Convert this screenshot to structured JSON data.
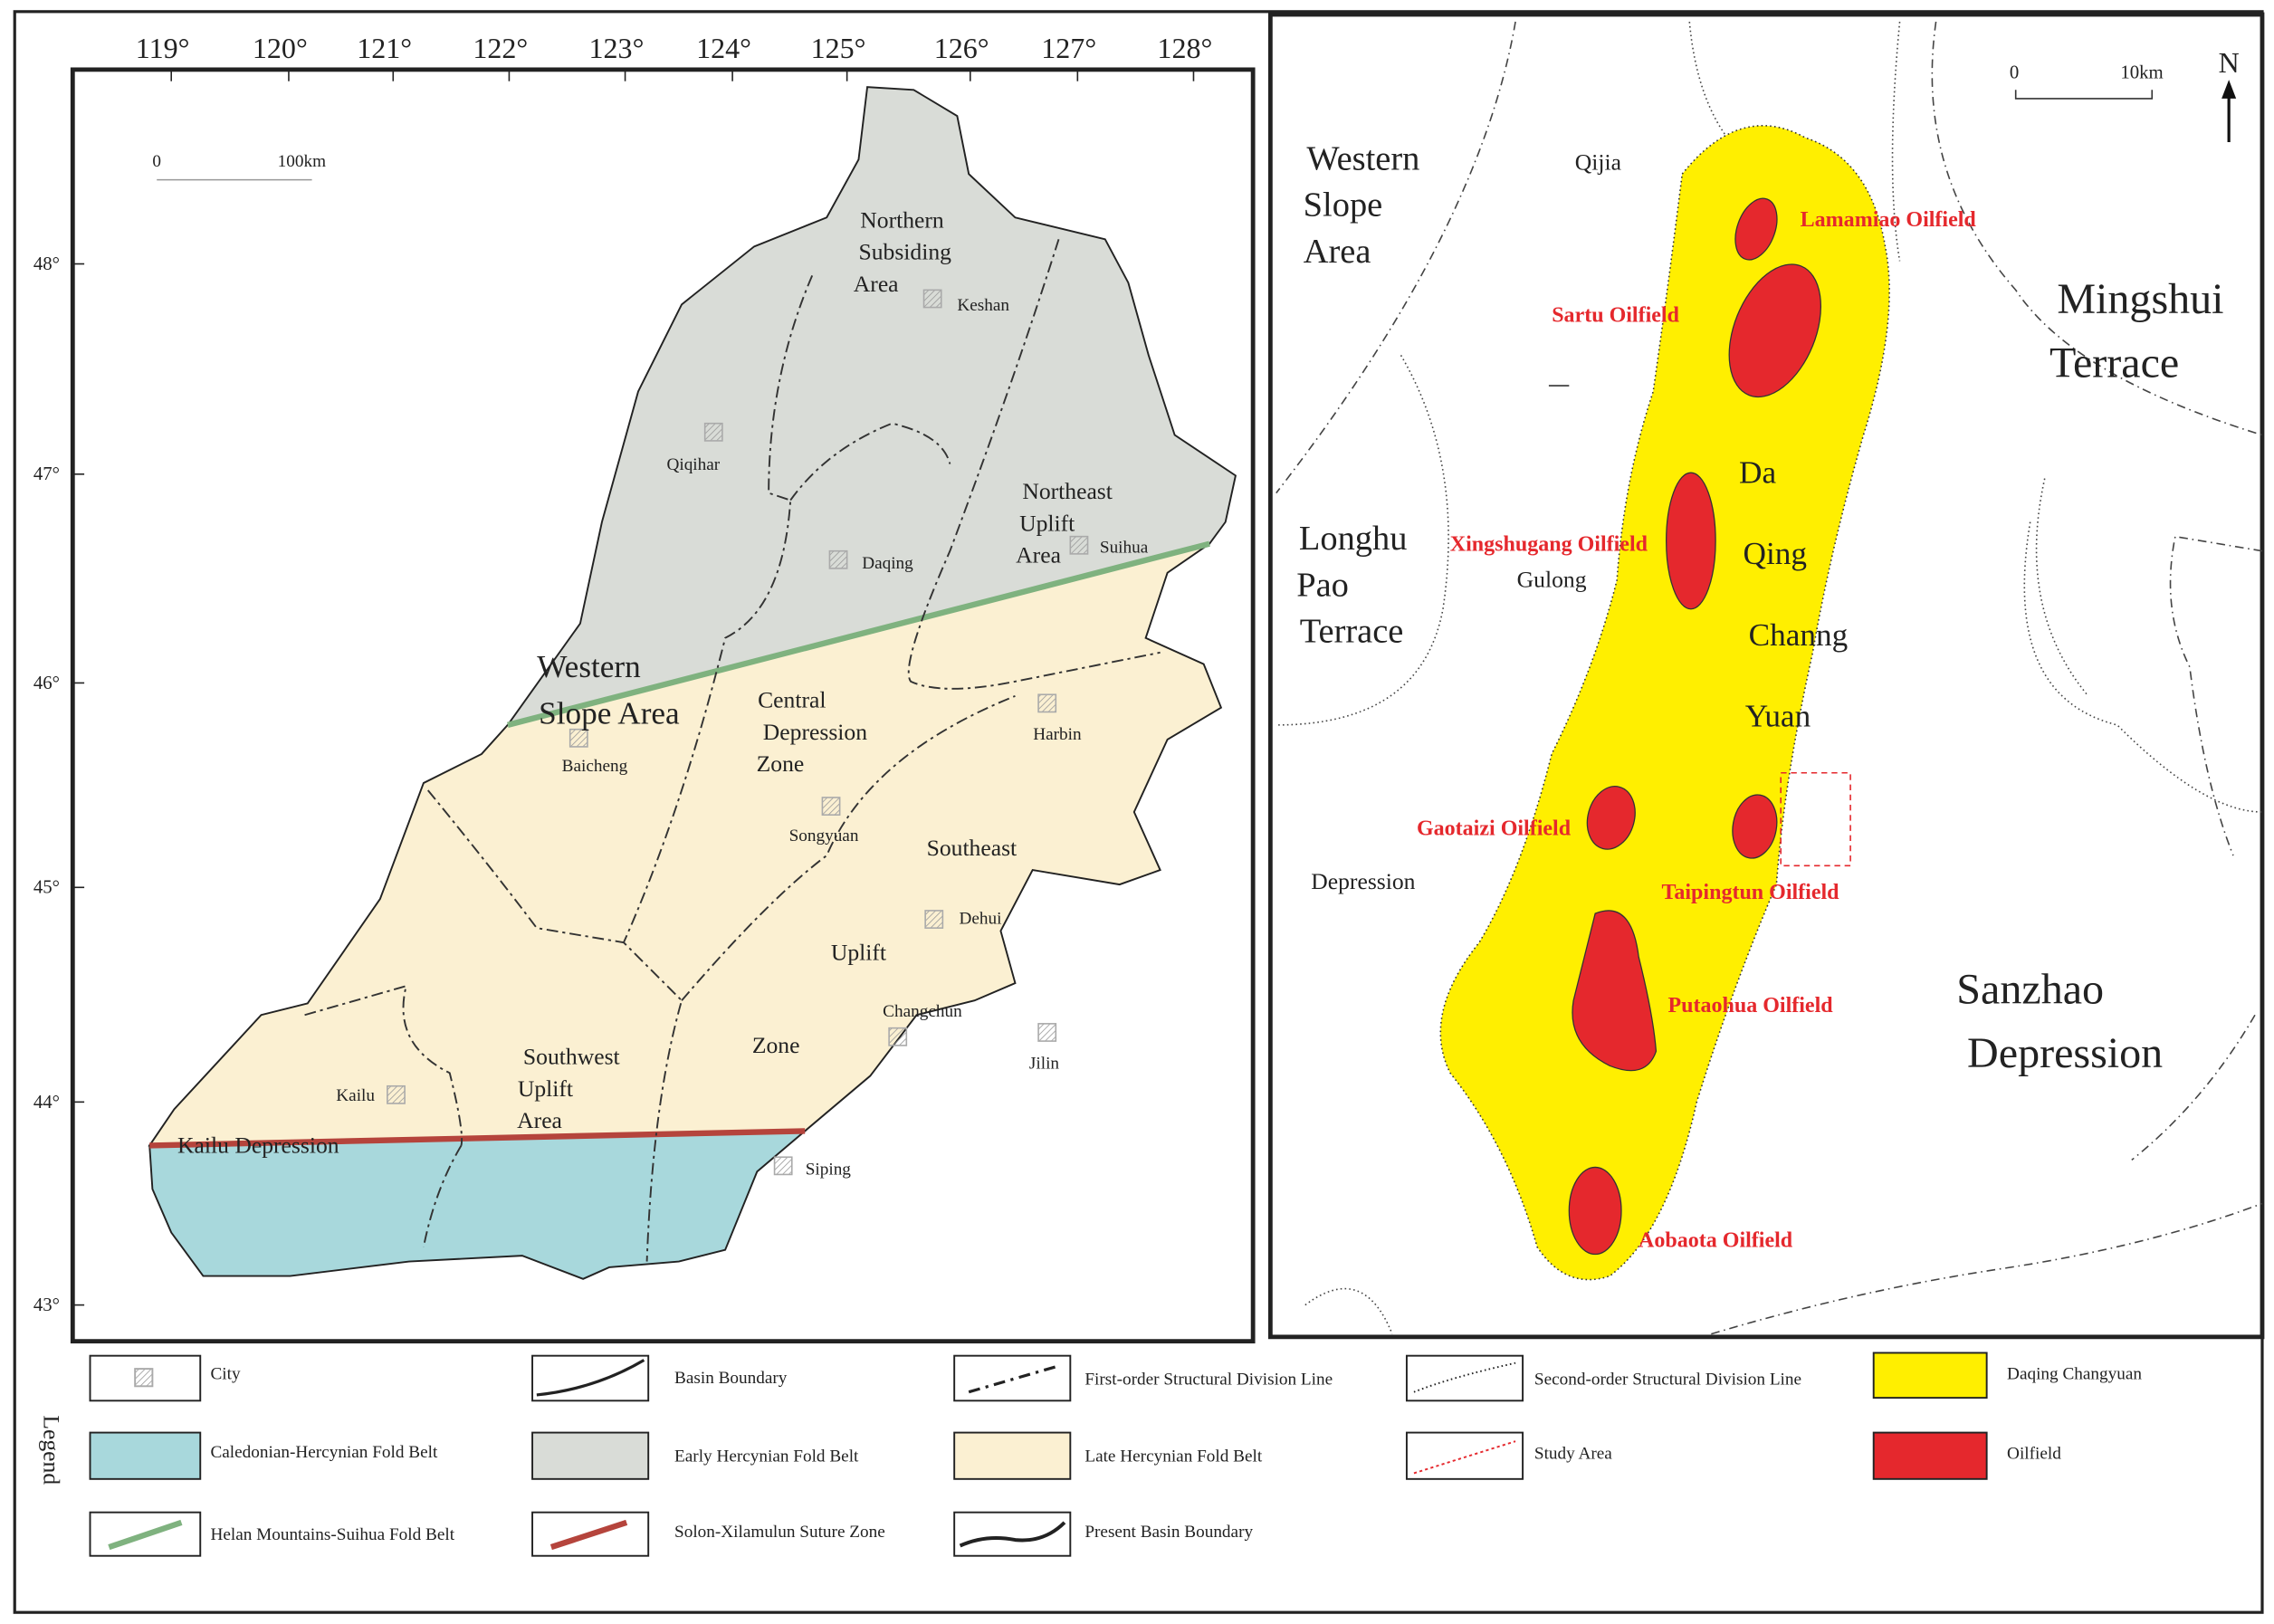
{
  "left_map": {
    "longitudes": [
      "119°",
      "120°",
      "121°",
      "122°",
      "123°",
      "124°",
      "125°",
      "126°",
      "127°",
      "128°"
    ],
    "latitudes": [
      "48°",
      "47°",
      "46°",
      "45°",
      "44°",
      "43°"
    ],
    "scale": [
      "0",
      "100km"
    ],
    "regions": [
      "Northern",
      "Subsiding",
      "Area",
      "Northeast",
      "Uplift",
      "Area",
      "Western",
      "Slope Area",
      "Central",
      "Depression",
      "Zone",
      "Southeast",
      "Uplift",
      "Zone",
      "Southwest",
      "Uplift",
      "Area",
      "Kailu Depression"
    ],
    "cities": [
      "Keshan",
      "Qiqihar",
      "Suihua",
      "Daqing",
      "Baicheng",
      "Harbin",
      "Songyuan",
      "Dehui",
      "Changchun",
      "Jilin",
      "Kailu",
      "Siping"
    ]
  },
  "right_map": {
    "scale": [
      "0",
      "10km"
    ],
    "north": "N",
    "regions": [
      "Western",
      "Slope",
      "Area",
      "Qijia",
      "Mingshui",
      "Terrace",
      "Da",
      "Qing",
      "Channg",
      "Yuan",
      "Longhu",
      "Pao",
      "Terrace",
      "Gulong",
      "Depression",
      "Sanzhao",
      "Depression"
    ],
    "oilfields": [
      "Lamamiao Oilfield",
      "Sartu Oilfield",
      "Xingshugang Oilfield",
      "Gaotaizi Oilfield",
      "Taipingtun Oilfield",
      "Putaohua Oilfield",
      "Aobaota Oilfield"
    ]
  },
  "legend": {
    "title": "Legend",
    "items": [
      "City",
      "Basin Boundary",
      "First-order Structural Division Line",
      "Second-order Structural Division Line",
      "Daqing Changyuan",
      "Caledonian-Hercynian Fold Belt",
      "Early Hercynian Fold Belt",
      "Late Hercynian Fold Belt",
      "Study  Area",
      "Oilfield",
      "Helan Mountains-Suihua Fold Belt",
      "Solon-Xilamulun Suture Zone",
      "Present Basin Boundary"
    ]
  }
}
